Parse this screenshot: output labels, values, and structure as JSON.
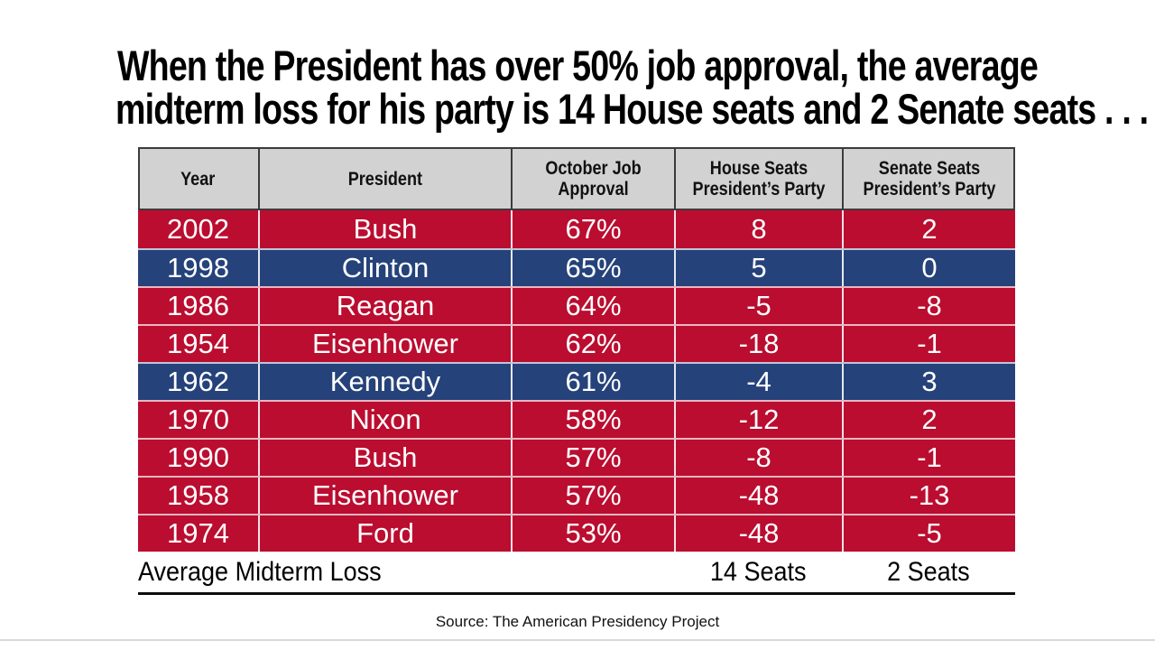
{
  "chart_data": {
    "type": "table",
    "title": "When the President has over 50% job approval, the average midterm loss for his party is 14 House seats and 2 Senate seats . . .",
    "title_lines": [
      "When the President has over 50% job approval, the average",
      "midterm loss for his party is 14 House seats and 2 Senate seats . . ."
    ],
    "columns": [
      "Year",
      "President",
      "October Job Approval",
      "House Seats President’s Party",
      "Senate Seats President’s Party"
    ],
    "row_fields": [
      "year",
      "president",
      "approval",
      "house_seats",
      "senate_seats"
    ],
    "rows": [
      {
        "year": 2002,
        "president": "Bush",
        "approval": "67%",
        "house_seats": 8,
        "senate_seats": 2,
        "party": "republican"
      },
      {
        "year": 1998,
        "president": "Clinton",
        "approval": "65%",
        "house_seats": 5,
        "senate_seats": 0,
        "party": "democrat"
      },
      {
        "year": 1986,
        "president": "Reagan",
        "approval": "64%",
        "house_seats": -5,
        "senate_seats": -8,
        "party": "republican"
      },
      {
        "year": 1954,
        "president": "Eisenhower",
        "approval": "62%",
        "house_seats": -18,
        "senate_seats": -1,
        "party": "republican"
      },
      {
        "year": 1962,
        "president": "Kennedy",
        "approval": "61%",
        "house_seats": -4,
        "senate_seats": 3,
        "party": "democrat"
      },
      {
        "year": 1970,
        "president": "Nixon",
        "approval": "58%",
        "house_seats": -12,
        "senate_seats": 2,
        "party": "republican"
      },
      {
        "year": 1990,
        "president": "Bush",
        "approval": "57%",
        "house_seats": -8,
        "senate_seats": -1,
        "party": "republican"
      },
      {
        "year": 1958,
        "president": "Eisenhower",
        "approval": "57%",
        "house_seats": -48,
        "senate_seats": -13,
        "party": "republican"
      },
      {
        "year": 1974,
        "president": "Ford",
        "approval": "53%",
        "house_seats": -48,
        "senate_seats": -5,
        "party": "republican"
      }
    ],
    "summary_row": {
      "label": "Average Midterm Loss",
      "house": "14 Seats",
      "senate": "2 Seats"
    },
    "source": "Source: The American Presidency Project",
    "row_colors": {
      "republican": "#ba0d30",
      "democrat": "#25427a"
    },
    "header_bg": "#d2d2d2",
    "header_border": "#3c3c3c"
  }
}
